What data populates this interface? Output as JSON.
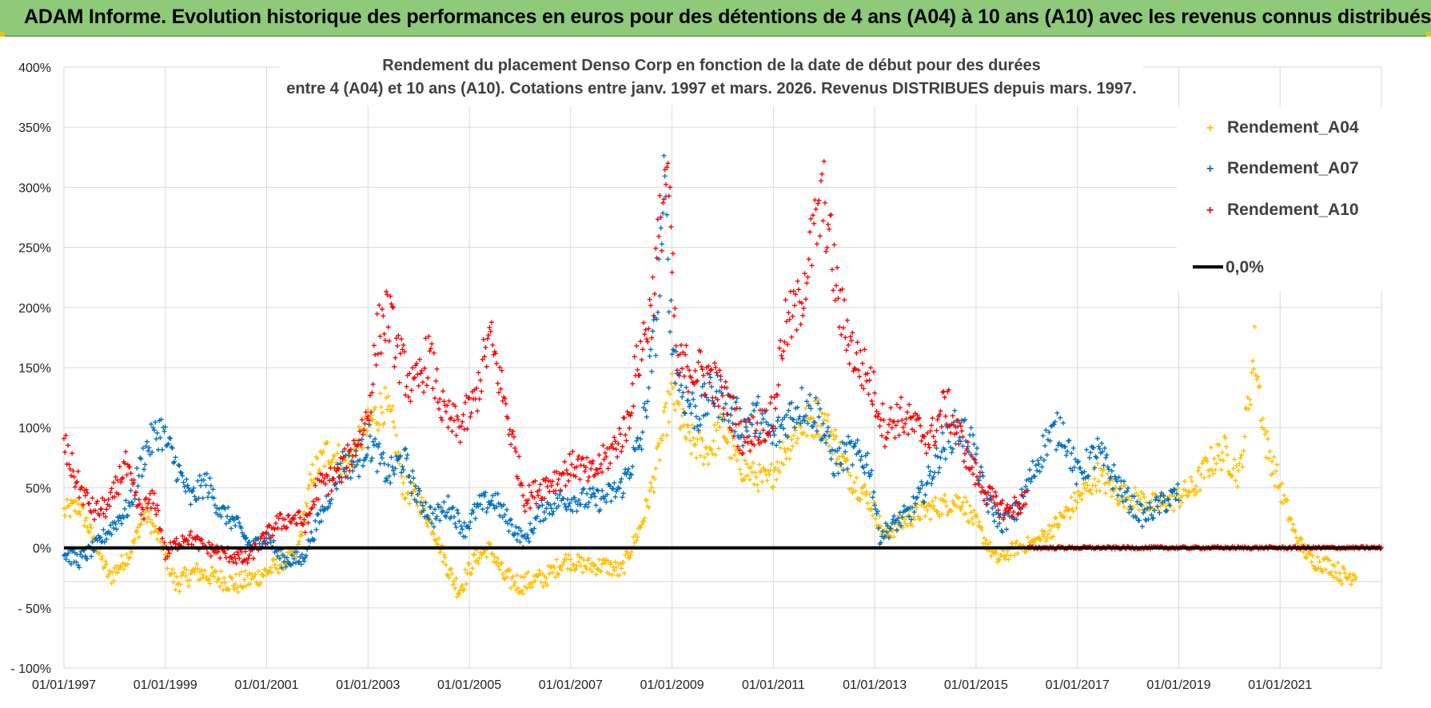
{
  "header": {
    "title": "ADAM Informe. Evolution historique des performances en euros pour des détentions de 4 ans (A04) à 10 ans (A10) avec les revenus connus distribués"
  },
  "colors": {
    "banner": "#8fc97a",
    "a04": "#ffc000",
    "a07": "#0070c0",
    "a10": "#ff0000",
    "zero": "#000000"
  },
  "chart_data": {
    "type": "scatter",
    "title_lines": [
      "Rendement du placement Denso Corp en fonction de la date de début pour des durées",
      "entre 4 (A04) et 10 ans (A10).  Cotations entre janv. 1997 et mars. 2026. Revenus DISTRIBUES depuis mars. 1997."
    ],
    "xlabel": "",
    "ylabel": "",
    "x_tick_labels": [
      "01/01/1997",
      "01/01/1999",
      "01/01/2001",
      "01/01/2003",
      "01/01/2005",
      "01/01/2007",
      "01/01/2009",
      "01/01/2011",
      "01/01/2013",
      "01/01/2015",
      "01/01/2017",
      "01/01/2019",
      "01/01/2021"
    ],
    "xlim": [
      1997.0,
      2023.0
    ],
    "y_tick_labels": [
      "400%",
      "350%",
      "300%",
      "250%",
      "200%",
      "150%",
      "100%",
      "50%",
      "0%",
      "- 50%",
      "- 100%"
    ],
    "ylim": [
      -100,
      400
    ],
    "legend_position": "top-right",
    "legend": [
      "Rendement_A04",
      "Rendement_A07",
      "Rendement_A10",
      "0,0%"
    ],
    "series": [
      {
        "name": "Rendement_A04",
        "color": "#ffc000",
        "x_start": 1997.0,
        "x_end": 2022.5,
        "keypoints": [
          [
            1997.0,
            30
          ],
          [
            1997.3,
            35
          ],
          [
            1997.6,
            5
          ],
          [
            1997.9,
            -25
          ],
          [
            1998.3,
            -5
          ],
          [
            1998.6,
            30
          ],
          [
            1998.9,
            5
          ],
          [
            1999.2,
            -30
          ],
          [
            1999.6,
            -20
          ],
          [
            2000.0,
            -25
          ],
          [
            2000.4,
            -30
          ],
          [
            2000.8,
            -25
          ],
          [
            2001.2,
            -15
          ],
          [
            2001.6,
            -5
          ],
          [
            2001.9,
            60
          ],
          [
            2002.2,
            80
          ],
          [
            2002.6,
            70
          ],
          [
            2003.0,
            100
          ],
          [
            2003.3,
            120
          ],
          [
            2003.5,
            100
          ],
          [
            2003.7,
            50
          ],
          [
            2004.0,
            40
          ],
          [
            2004.3,
            15
          ],
          [
            2004.6,
            -20
          ],
          [
            2004.8,
            -35
          ],
          [
            2005.1,
            -10
          ],
          [
            2005.4,
            0
          ],
          [
            2005.7,
            -25
          ],
          [
            2006.0,
            -30
          ],
          [
            2006.5,
            -25
          ],
          [
            2006.9,
            -10
          ],
          [
            2007.3,
            -15
          ],
          [
            2007.7,
            -15
          ],
          [
            2008.0,
            -20
          ],
          [
            2008.2,
            0
          ],
          [
            2008.4,
            20
          ],
          [
            2008.6,
            50
          ],
          [
            2008.8,
            90
          ],
          [
            2009.0,
            130
          ],
          [
            2009.3,
            90
          ],
          [
            2009.7,
            80
          ],
          [
            2010.0,
            100
          ],
          [
            2010.3,
            70
          ],
          [
            2010.6,
            60
          ],
          [
            2010.9,
            55
          ],
          [
            2011.2,
            80
          ],
          [
            2011.5,
            100
          ],
          [
            2011.9,
            110
          ],
          [
            2012.2,
            90
          ],
          [
            2012.5,
            60
          ],
          [
            2012.9,
            40
          ],
          [
            2013.2,
            10
          ],
          [
            2013.5,
            20
          ],
          [
            2013.9,
            30
          ],
          [
            2014.3,
            35
          ],
          [
            2014.7,
            40
          ],
          [
            2015.0,
            20
          ],
          [
            2015.4,
            -10
          ],
          [
            2015.8,
            0
          ],
          [
            2016.2,
            5
          ],
          [
            2016.6,
            20
          ],
          [
            2017.0,
            40
          ],
          [
            2017.4,
            60
          ],
          [
            2017.8,
            45
          ],
          [
            2018.2,
            40
          ],
          [
            2018.6,
            35
          ],
          [
            2018.9,
            40
          ],
          [
            2019.3,
            50
          ],
          [
            2019.6,
            70
          ],
          [
            2019.9,
            80
          ],
          [
            2020.2,
            60
          ],
          [
            2020.4,
            130
          ],
          [
            2020.5,
            165
          ],
          [
            2020.7,
            90
          ],
          [
            2021.0,
            50
          ],
          [
            2021.3,
            10
          ],
          [
            2021.6,
            -10
          ],
          [
            2022.0,
            -15
          ],
          [
            2022.3,
            -25
          ],
          [
            2022.5,
            -20
          ]
        ]
      },
      {
        "name": "Rendement_A07",
        "color": "#0070c0",
        "x_start": 1997.0,
        "x_end": 2019.0,
        "keypoints": [
          [
            1997.0,
            -5
          ],
          [
            1997.3,
            -10
          ],
          [
            1997.6,
            0
          ],
          [
            1998.0,
            20
          ],
          [
            1998.3,
            35
          ],
          [
            1998.6,
            80
          ],
          [
            1998.9,
            100
          ],
          [
            1999.2,
            70
          ],
          [
            1999.5,
            40
          ],
          [
            1999.8,
            55
          ],
          [
            2000.1,
            30
          ],
          [
            2000.4,
            20
          ],
          [
            2000.7,
            0
          ],
          [
            2001.0,
            10
          ],
          [
            2001.3,
            -10
          ],
          [
            2001.7,
            -10
          ],
          [
            2002.1,
            30
          ],
          [
            2002.5,
            70
          ],
          [
            2002.8,
            70
          ],
          [
            2003.0,
            90
          ],
          [
            2003.4,
            60
          ],
          [
            2003.7,
            75
          ],
          [
            2004.0,
            40
          ],
          [
            2004.3,
            25
          ],
          [
            2004.6,
            35
          ],
          [
            2004.9,
            15
          ],
          [
            2005.2,
            35
          ],
          [
            2005.5,
            40
          ],
          [
            2005.8,
            20
          ],
          [
            2006.1,
            5
          ],
          [
            2006.4,
            30
          ],
          [
            2006.8,
            40
          ],
          [
            2007.2,
            40
          ],
          [
            2007.6,
            40
          ],
          [
            2008.0,
            50
          ],
          [
            2008.4,
            90
          ],
          [
            2008.7,
            190
          ],
          [
            2008.85,
            300
          ],
          [
            2009.0,
            170
          ],
          [
            2009.2,
            130
          ],
          [
            2009.5,
            110
          ],
          [
            2009.8,
            130
          ],
          [
            2010.1,
            120
          ],
          [
            2010.4,
            100
          ],
          [
            2010.7,
            110
          ],
          [
            2011.0,
            90
          ],
          [
            2011.3,
            110
          ],
          [
            2011.6,
            120
          ],
          [
            2011.9,
            110
          ],
          [
            2012.2,
            70
          ],
          [
            2012.5,
            80
          ],
          [
            2012.9,
            70
          ],
          [
            2013.1,
            10
          ],
          [
            2013.4,
            20
          ],
          [
            2013.7,
            30
          ],
          [
            2014.0,
            50
          ],
          [
            2014.3,
            80
          ],
          [
            2014.6,
            100
          ],
          [
            2014.9,
            90
          ],
          [
            2015.2,
            40
          ],
          [
            2015.5,
            20
          ],
          [
            2015.8,
            30
          ],
          [
            2016.1,
            60
          ],
          [
            2016.4,
            90
          ],
          [
            2016.7,
            100
          ],
          [
            2017.0,
            60
          ],
          [
            2017.4,
            80
          ],
          [
            2017.7,
            60
          ],
          [
            2018.0,
            40
          ],
          [
            2018.3,
            25
          ],
          [
            2018.6,
            35
          ],
          [
            2019.0,
            45
          ]
        ]
      },
      {
        "name": "Rendement_A10",
        "color": "#ff0000",
        "x_start": 1997.0,
        "x_end": 2023.0,
        "zero_from": 2016.0,
        "keypoints": [
          [
            1997.0,
            85
          ],
          [
            1997.3,
            50
          ],
          [
            1997.6,
            30
          ],
          [
            1997.9,
            35
          ],
          [
            1998.2,
            70
          ],
          [
            1998.5,
            30
          ],
          [
            1998.8,
            40
          ],
          [
            1999.0,
            -5
          ],
          [
            1999.4,
            10
          ],
          [
            1999.8,
            0
          ],
          [
            2000.2,
            -5
          ],
          [
            2000.6,
            -10
          ],
          [
            2000.9,
            5
          ],
          [
            2001.2,
            20
          ],
          [
            2001.5,
            25
          ],
          [
            2001.8,
            20
          ],
          [
            2002.0,
            50
          ],
          [
            2002.4,
            60
          ],
          [
            2002.7,
            80
          ],
          [
            2003.0,
            110
          ],
          [
            2003.2,
            180
          ],
          [
            2003.4,
            195
          ],
          [
            2003.6,
            160
          ],
          [
            2003.9,
            130
          ],
          [
            2004.2,
            160
          ],
          [
            2004.5,
            110
          ],
          [
            2004.8,
            100
          ],
          [
            2005.1,
            120
          ],
          [
            2005.4,
            175
          ],
          [
            2005.6,
            140
          ],
          [
            2005.9,
            80
          ],
          [
            2006.1,
            40
          ],
          [
            2006.4,
            50
          ],
          [
            2006.8,
            60
          ],
          [
            2007.1,
            70
          ],
          [
            2007.4,
            60
          ],
          [
            2007.8,
            80
          ],
          [
            2008.1,
            100
          ],
          [
            2008.3,
            150
          ],
          [
            2008.6,
            200
          ],
          [
            2008.8,
            280
          ],
          [
            2008.9,
            320
          ],
          [
            2009.1,
            150
          ],
          [
            2009.4,
            150
          ],
          [
            2009.8,
            140
          ],
          [
            2010.1,
            120
          ],
          [
            2010.4,
            90
          ],
          [
            2010.7,
            100
          ],
          [
            2011.0,
            110
          ],
          [
            2011.2,
            180
          ],
          [
            2011.5,
            200
          ],
          [
            2011.8,
            260
          ],
          [
            2012.0,
            290
          ],
          [
            2012.3,
            200
          ],
          [
            2012.6,
            160
          ],
          [
            2012.9,
            140
          ],
          [
            2013.2,
            100
          ],
          [
            2013.5,
            110
          ],
          [
            2013.8,
            100
          ],
          [
            2014.1,
            90
          ],
          [
            2014.4,
            120
          ],
          [
            2014.7,
            90
          ],
          [
            2015.0,
            60
          ],
          [
            2015.3,
            40
          ],
          [
            2015.6,
            30
          ],
          [
            2016.0,
            40
          ]
        ]
      }
    ]
  }
}
